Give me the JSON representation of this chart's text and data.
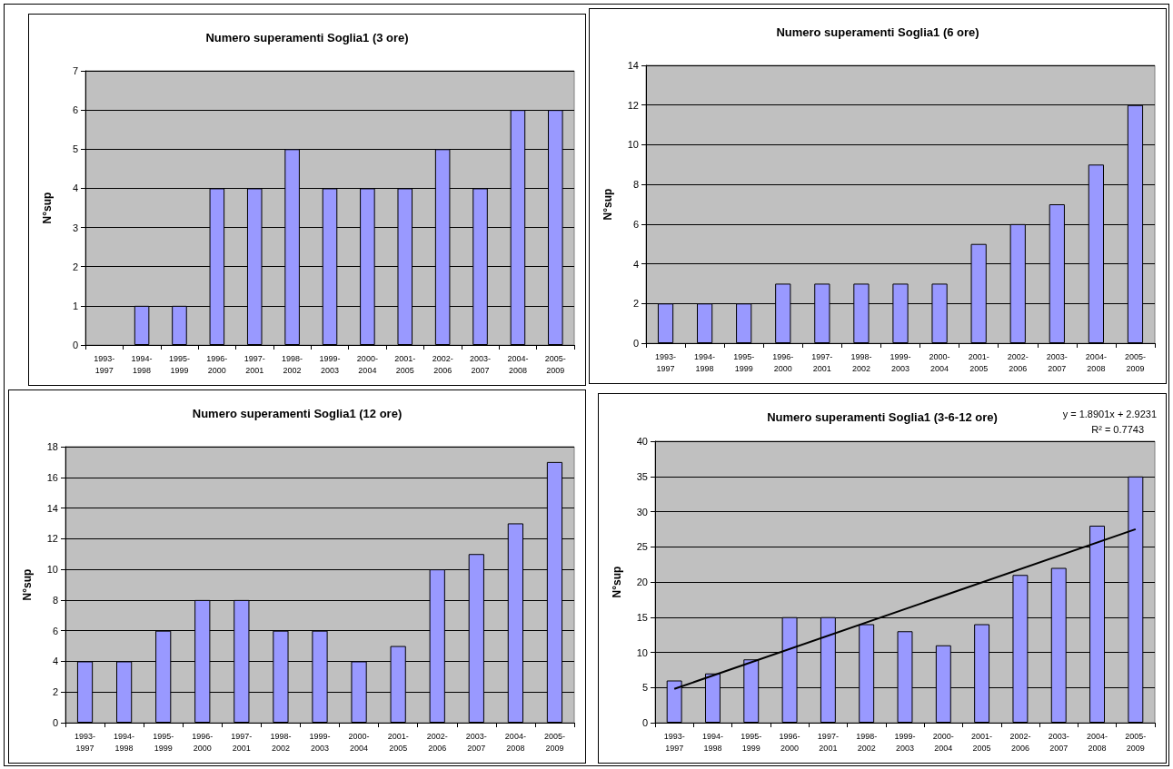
{
  "chart_data": [
    {
      "type": "bar",
      "title": "Numero superamenti Soglia1 (3 ore)",
      "ylabel": "N°sup",
      "categories": [
        "1993-1997",
        "1994-1998",
        "1995-1999",
        "1996-2000",
        "1997-2001",
        "1998-2002",
        "1999-2003",
        "2000-2004",
        "2001-2005",
        "2002-2006",
        "2003-2007",
        "2004-2008",
        "2005-2009"
      ],
      "series": [
        {
          "color": "#9999ff",
          "values": [
            0,
            1,
            1,
            4,
            4,
            5,
            4,
            4,
            4,
            5,
            4,
            6,
            6
          ]
        }
      ],
      "ylim": [
        0,
        7
      ],
      "yticks": [
        0,
        1,
        2,
        3,
        4,
        5,
        6,
        7
      ],
      "grid": "y"
    },
    {
      "type": "bar",
      "title": "Numero superamenti Soglia1 (6 ore)",
      "ylabel": "N°sup",
      "categories": [
        "1993-1997",
        "1994-1998",
        "1995-1999",
        "1996-2000",
        "1997-2001",
        "1998-2002",
        "1999-2003",
        "2000-2004",
        "2001-2005",
        "2002-2006",
        "2003-2007",
        "2004-2008",
        "2005-2009"
      ],
      "series": [
        {
          "color": "#9999ff",
          "values": [
            2,
            2,
            2,
            3,
            3,
            3,
            3,
            3,
            5,
            6,
            7,
            9,
            12
          ]
        }
      ],
      "ylim": [
        0,
        14
      ],
      "yticks": [
        0,
        2,
        4,
        6,
        8,
        10,
        12,
        14
      ],
      "grid": "y"
    },
    {
      "type": "bar",
      "title": "Numero superamenti Soglia1 (12 ore)",
      "ylabel": "N°sup",
      "categories": [
        "1993-1997",
        "1994-1998",
        "1995-1999",
        "1996-2000",
        "1997-2001",
        "1998-2002",
        "1999-2003",
        "2000-2004",
        "2001-2005",
        "2002-2006",
        "2003-2007",
        "2004-2008",
        "2005-2009"
      ],
      "series": [
        {
          "color": "#9999ff",
          "values": [
            4,
            4,
            6,
            8,
            8,
            6,
            6,
            4,
            5,
            10,
            11,
            13,
            17
          ]
        }
      ],
      "ylim": [
        0,
        18
      ],
      "yticks": [
        0,
        2,
        4,
        6,
        8,
        10,
        12,
        14,
        16,
        18
      ],
      "grid": "y"
    },
    {
      "type": "bar",
      "title": "Numero superamenti Soglia1 (3-6-12 ore)",
      "ylabel": "N°sup",
      "categories": [
        "1993-1997",
        "1994-1998",
        "1995-1999",
        "1996-2000",
        "1997-2001",
        "1998-2002",
        "1999-2003",
        "2000-2004",
        "2001-2005",
        "2002-2006",
        "2003-2007",
        "2004-2008",
        "2005-2009"
      ],
      "series": [
        {
          "color": "#9999ff",
          "values": [
            6,
            7,
            9,
            15,
            15,
            14,
            13,
            11,
            14,
            21,
            22,
            28,
            35
          ]
        },
        {
          "type": "line",
          "color": "#000000",
          "x": [
            "1993-1997",
            "2005-2009"
          ],
          "values": [
            4.8,
            27.5
          ]
        }
      ],
      "ylim": [
        0,
        40
      ],
      "yticks": [
        0,
        5,
        10,
        15,
        20,
        25,
        30,
        35,
        40
      ],
      "grid": "y",
      "annotations": [
        "y = 1.8901x + 2.9231",
        "R² = 0.7743"
      ]
    }
  ]
}
